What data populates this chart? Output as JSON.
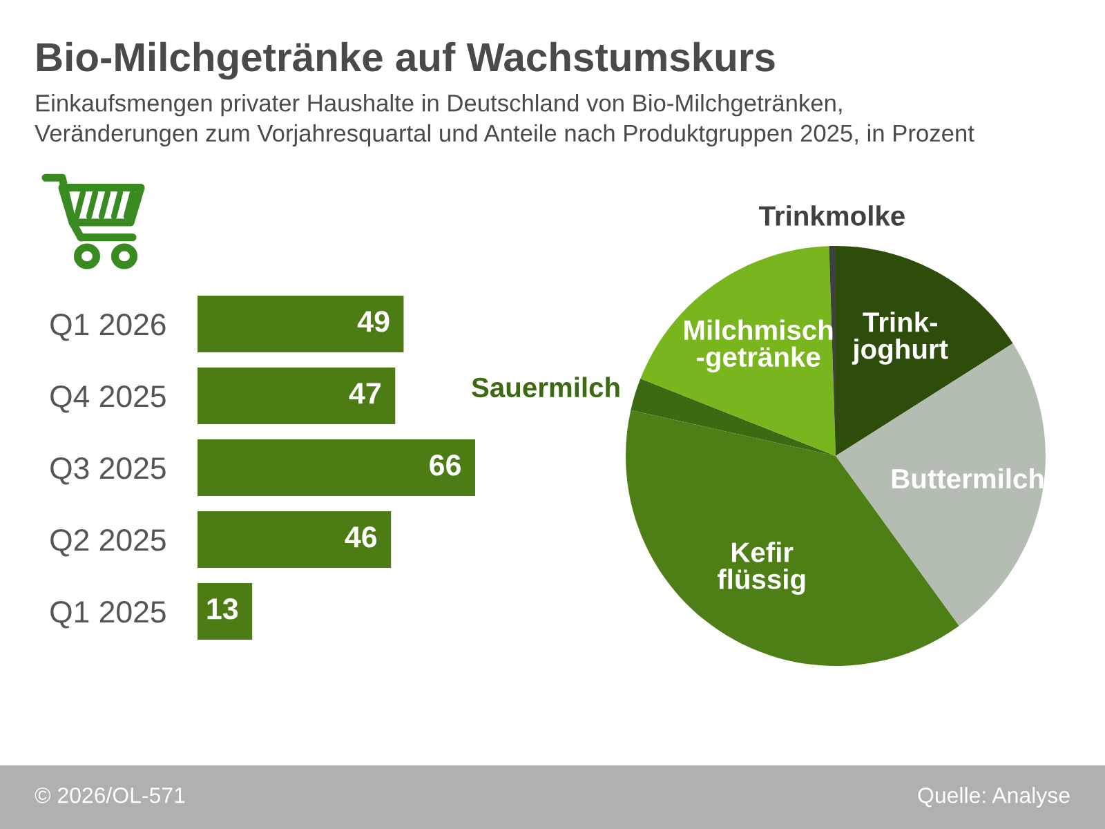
{
  "chart_data": [
    {
      "type": "bar",
      "title": "Bio-Milchgetränke auf Wachstumskurs",
      "subtitle": "Einkaufsmengen privater Haushalte in Deutschland von Bio-Milchgetränken,\nVeränderungen zum Vorjahresquartal und Anteile nach Produktgruppen 2025, in Prozent",
      "orientation": "horizontal",
      "categories": [
        "Q1 2026",
        "Q4 2025",
        "Q3 2025",
        "Q2 2025",
        "Q1 2025"
      ],
      "values": [
        49,
        47,
        66,
        46,
        13
      ],
      "color": "#4d7c15",
      "data_labels": true,
      "annotations": [
        "© 2026/OL-571",
        "Quelle: Analyse"
      ]
    },
    {
      "type": "pie",
      "categories": [
        "Trink-\njoghurt",
        "Buttermilch",
        "Kefir\nflüssig",
        "Sauermilch",
        "Milchmisch\n-getränke",
        "Trinkmolke"
      ],
      "values": [
        16,
        24,
        38.5,
        2.5,
        18.5,
        0.5
      ],
      "colors": [
        "#2e4d0b",
        "#b3bdb1",
        "#4e7f16",
        "#3b6a12",
        "#79b51c",
        "#404040"
      ]
    }
  ]
}
